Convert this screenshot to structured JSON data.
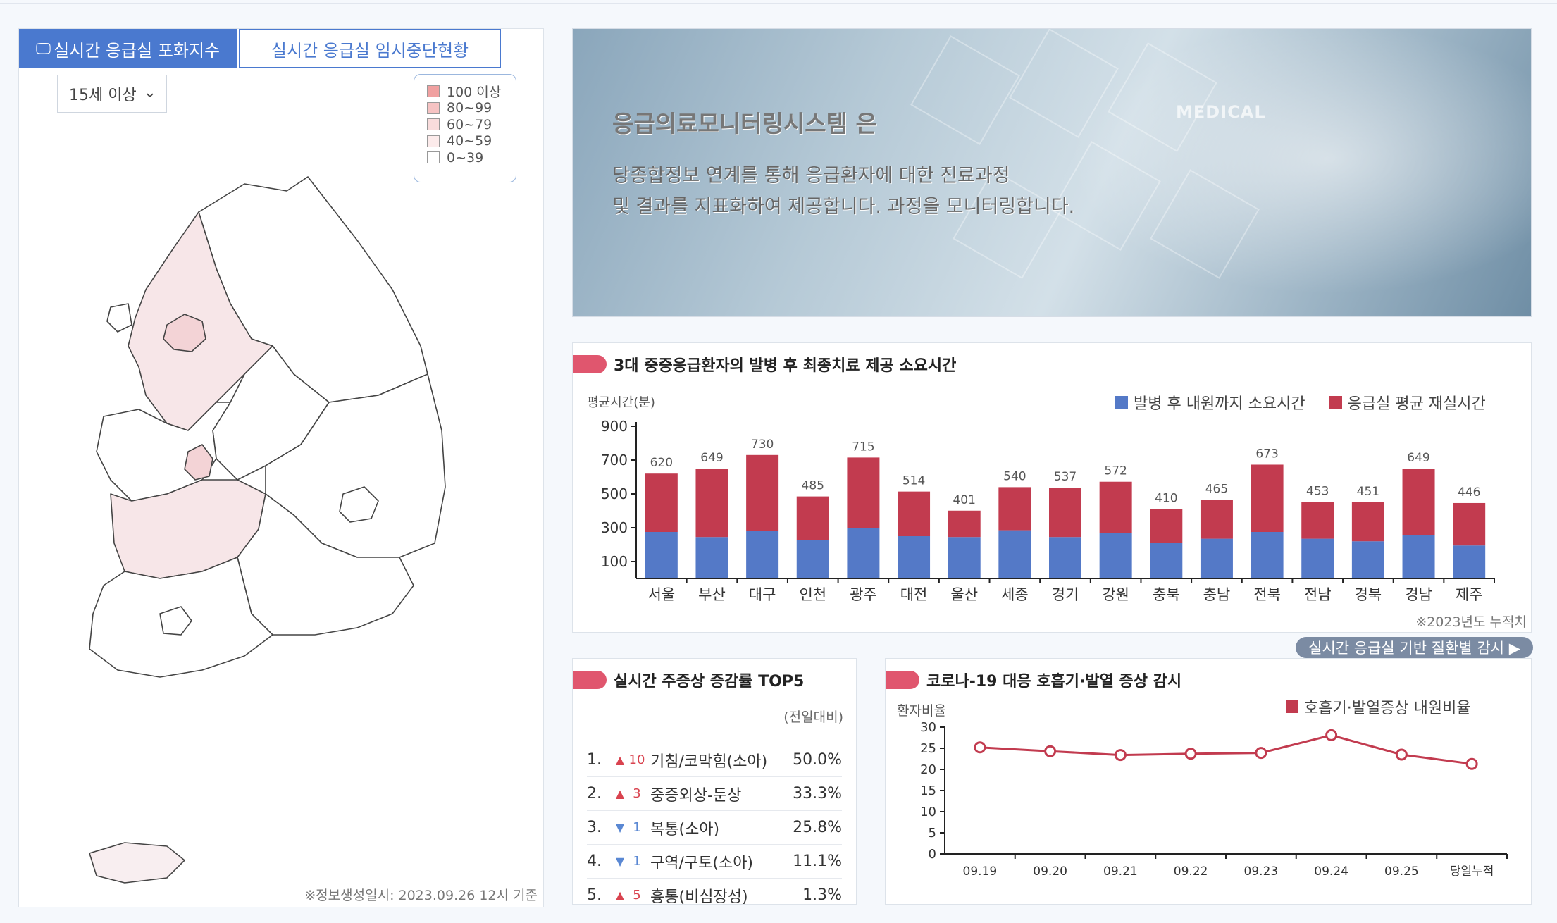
{
  "tabs": {
    "active_label": "실시간 응급실 포화지수",
    "inactive_label": "실시간 응급실 임시중단현황"
  },
  "age_filter": {
    "selected": "15세 이상"
  },
  "legend": [
    {
      "label": "100 이상",
      "color": "#f0a0a0"
    },
    {
      "label": "80~99",
      "color": "#f6c3c3"
    },
    {
      "label": "60~79",
      "color": "#f9dcdc"
    },
    {
      "label": "40~59",
      "color": "#fcebeb"
    },
    {
      "label": "0~39",
      "color": "#ffffff"
    }
  ],
  "map_note": "※정보생성일시: 2023.09.26 12시 기준",
  "banner": {
    "title": "응급의료모니터링시스템 은",
    "line1": "당종합정보 연계를 통해 응급환자에 대한 진료과정",
    "line2": "및 결과를 지표화하여 제공합니다. 과정을 모니터링합니다.",
    "tag": "MEDICAL"
  },
  "main_chart": {
    "title": "3대 중증응급환자의 발병 후 최종치료 제공 소요시간",
    "ylabel": "평균시간(분)",
    "note": "※2023년도 누적치"
  },
  "chart_data": [
    {
      "type": "bar",
      "stacked": true,
      "categories": [
        "서울",
        "부산",
        "대구",
        "인천",
        "광주",
        "대전",
        "울산",
        "세종",
        "경기",
        "강원",
        "충북",
        "충남",
        "전북",
        "전남",
        "경북",
        "경남",
        "제주"
      ],
      "series": [
        {
          "name": "발병 후 내원까지 소요시간",
          "color": "#5479c7",
          "values": [
            275,
            245,
            280,
            225,
            300,
            250,
            245,
            285,
            245,
            270,
            210,
            235,
            275,
            235,
            220,
            255,
            195
          ]
        },
        {
          "name": "응급실 평균 재실시간",
          "color": "#c23b4f",
          "values": [
            345,
            404,
            450,
            260,
            415,
            264,
            156,
            255,
            292,
            302,
            200,
            230,
            398,
            218,
            231,
            394,
            251
          ]
        }
      ],
      "totals": [
        620,
        649,
        730,
        485,
        715,
        514,
        401,
        540,
        537,
        572,
        410,
        465,
        673,
        453,
        451,
        649,
        446
      ],
      "yticks": [
        100,
        300,
        500,
        700,
        900
      ],
      "ylim": [
        0,
        900
      ]
    },
    {
      "type": "line",
      "title": "코로나-19 대응 호흡기·발열 증상 감시",
      "ylabel": "환자비율",
      "categories": [
        "09.19",
        "09.20",
        "09.21",
        "09.22",
        "09.23",
        "09.24",
        "09.25",
        "당일누적"
      ],
      "series": [
        {
          "name": "호흡기·발열증상 내원비율",
          "color": "#c23b4f",
          "values": [
            25.2,
            24.3,
            23.4,
            23.7,
            23.9,
            28.1,
            23.5,
            21.3
          ]
        }
      ],
      "yticks": [
        0,
        5,
        10,
        15,
        20,
        25,
        30
      ],
      "ylim": [
        0,
        30
      ]
    }
  ],
  "link_button": "실시간 응급실 기반 질환별 감시 ▶",
  "top5": {
    "title": "실시간 주증상 증감률 TOP5",
    "ref_note": "(전일대비)",
    "rows": [
      {
        "rank": "1.",
        "dir": "up",
        "change": "10",
        "name": "기침/코막힘(소아)",
        "rate": "50.0%"
      },
      {
        "rank": "2.",
        "dir": "up",
        "change": "3",
        "name": "중증외상-둔상",
        "rate": "33.3%"
      },
      {
        "rank": "3.",
        "dir": "down",
        "change": "1",
        "name": "복통(소아)",
        "rate": "25.8%"
      },
      {
        "rank": "4.",
        "dir": "down",
        "change": "1",
        "name": "구역/구토(소아)",
        "rate": "11.1%"
      },
      {
        "rank": "5.",
        "dir": "up",
        "change": "5",
        "name": "흉통(비심장성)",
        "rate": "1.3%"
      }
    ]
  },
  "icons": {
    "tab_icon": "monitor-icon",
    "select_icon": "chevron-down-icon",
    "arrow_up": "triangle-up-icon",
    "arrow_down": "triangle-down-icon"
  }
}
